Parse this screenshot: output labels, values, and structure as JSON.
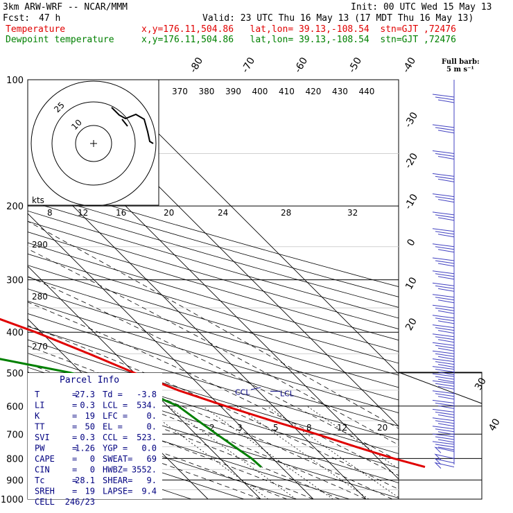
{
  "header": {
    "model": "3km ARW-WRF -- NCAR/MMM",
    "init": "Init: 00 UTC Wed 15 May 13",
    "fcst_label": "Fcst:",
    "fcst_value": "47 h",
    "valid": "Valid: 23 UTC Thu 16 May 13 (17 MDT Thu 16 May 13)",
    "temp_label": "Temperature",
    "temp_info": "x,y=176.11,504.86   lat,lon= 39.13,-108.54  stn=GJT ,72476",
    "dew_label": "Dewpoint temperature",
    "dew_info": "x,y=176.11,504.86   lat,lon= 39.13,-108.54  stn=GJT ,72476"
  },
  "colors": {
    "temperature": "#e00000",
    "dewpoint": "#008000",
    "parcel_text": "#000080",
    "wind_barbs": "#4040c0",
    "isotherm_labels": "#000000"
  },
  "chart_data": {
    "type": "line",
    "diagram": "skew-T log-p",
    "pressure_levels_hPa": [
      100,
      200,
      300,
      400,
      500,
      600,
      700,
      800,
      900,
      1000
    ],
    "isotherm_labels": [
      "-80",
      "-70",
      "-60",
      "-50",
      "-40",
      "-30",
      "-20",
      "-10",
      "0",
      "10",
      "20",
      "30",
      "40"
    ],
    "dry_adiabat_labels": [
      "270",
      "280",
      "290"
    ],
    "inset_theta_labels": [
      "370",
      "380",
      "390",
      "400",
      "410",
      "420",
      "430",
      "440"
    ],
    "inset_kts_label": "kts",
    "inset_speed_labels": [
      "8",
      "12",
      "16",
      "20",
      "24",
      "28",
      "32"
    ],
    "hodograph_ring_labels": [
      "25",
      "10"
    ],
    "mixing_ratio_labels": [
      "2",
      "3",
      "5",
      "8",
      "12",
      "20"
    ],
    "level_markers": [
      {
        "label": "CCL",
        "p": 523
      },
      {
        "label": "LCL",
        "p": 534
      }
    ],
    "full_barb_legend": [
      "Full barb:",
      "5 m s⁻¹"
    ],
    "series": [
      {
        "name": "Temperature",
        "color": "#e00000",
        "points": [
          [
            100,
            -67
          ],
          [
            150,
            -57
          ],
          [
            180,
            -57
          ],
          [
            200,
            -55
          ],
          [
            250,
            -45
          ],
          [
            300,
            -37
          ],
          [
            350,
            -29
          ],
          [
            400,
            -21
          ],
          [
            450,
            -15
          ],
          [
            500,
            -10
          ],
          [
            550,
            -5
          ],
          [
            600,
            1
          ],
          [
            650,
            7
          ],
          [
            700,
            13
          ],
          [
            750,
            18
          ],
          [
            800,
            23
          ],
          [
            838,
            27.3
          ]
        ]
      },
      {
        "name": "Dewpoint temperature",
        "color": "#008000",
        "points": [
          [
            100,
            -82
          ],
          [
            150,
            -83
          ],
          [
            180,
            -88
          ],
          [
            200,
            -86
          ],
          [
            250,
            -76
          ],
          [
            300,
            -65
          ],
          [
            350,
            -52
          ],
          [
            400,
            -45
          ],
          [
            450,
            -37
          ],
          [
            500,
            -22
          ],
          [
            550,
            -12
          ],
          [
            600,
            -8
          ],
          [
            650,
            -7
          ],
          [
            700,
            -6
          ],
          [
            750,
            -5
          ],
          [
            800,
            -4
          ],
          [
            838,
            -3.8
          ]
        ]
      }
    ],
    "wind_barbs_pressure_hPa": [
      110,
      130,
      150,
      170,
      190,
      210,
      230,
      250,
      270,
      290,
      310,
      330,
      350,
      370,
      390,
      410,
      430,
      450,
      470,
      490,
      510,
      530,
      560,
      590,
      620,
      650,
      680,
      710,
      740,
      770,
      800,
      820,
      838
    ]
  },
  "parcel_info": {
    "title": "Parcel Info",
    "rows": [
      {
        "k1": "T",
        "v1": "27.3",
        "k2": "Td =",
        "v2": "-3.8"
      },
      {
        "k1": "LI",
        "v1": "0.3",
        "k2": "LCL =",
        "v2": "534."
      },
      {
        "k1": "K",
        "v1": "19",
        "k2": "LFC =",
        "v2": "0."
      },
      {
        "k1": "TT",
        "v1": "50",
        "k2": "EL =",
        "v2": "0."
      },
      {
        "k1": "SVI",
        "v1": "0.3",
        "k2": "CCL =",
        "v2": "523."
      },
      {
        "k1": "PW",
        "v1": "1.26",
        "k2": "YGP =",
        "v2": "0.0"
      },
      {
        "k1": "CAPE",
        "v1": "0",
        "k2": "SWEAT=",
        "v2": "69"
      },
      {
        "k1": "CIN",
        "v1": "0",
        "k2": "HWBZ=",
        "v2": "3552."
      },
      {
        "k1": "Tc",
        "v1": "28.1",
        "k2": "SHEAR=",
        "v2": "9."
      },
      {
        "k1": "SREH",
        "v1": "19",
        "k2": "LAPSE=",
        "v2": "9.4"
      },
      {
        "k1": "CELL",
        "v1": "246/23",
        "k2": "",
        "v2": ""
      }
    ]
  }
}
